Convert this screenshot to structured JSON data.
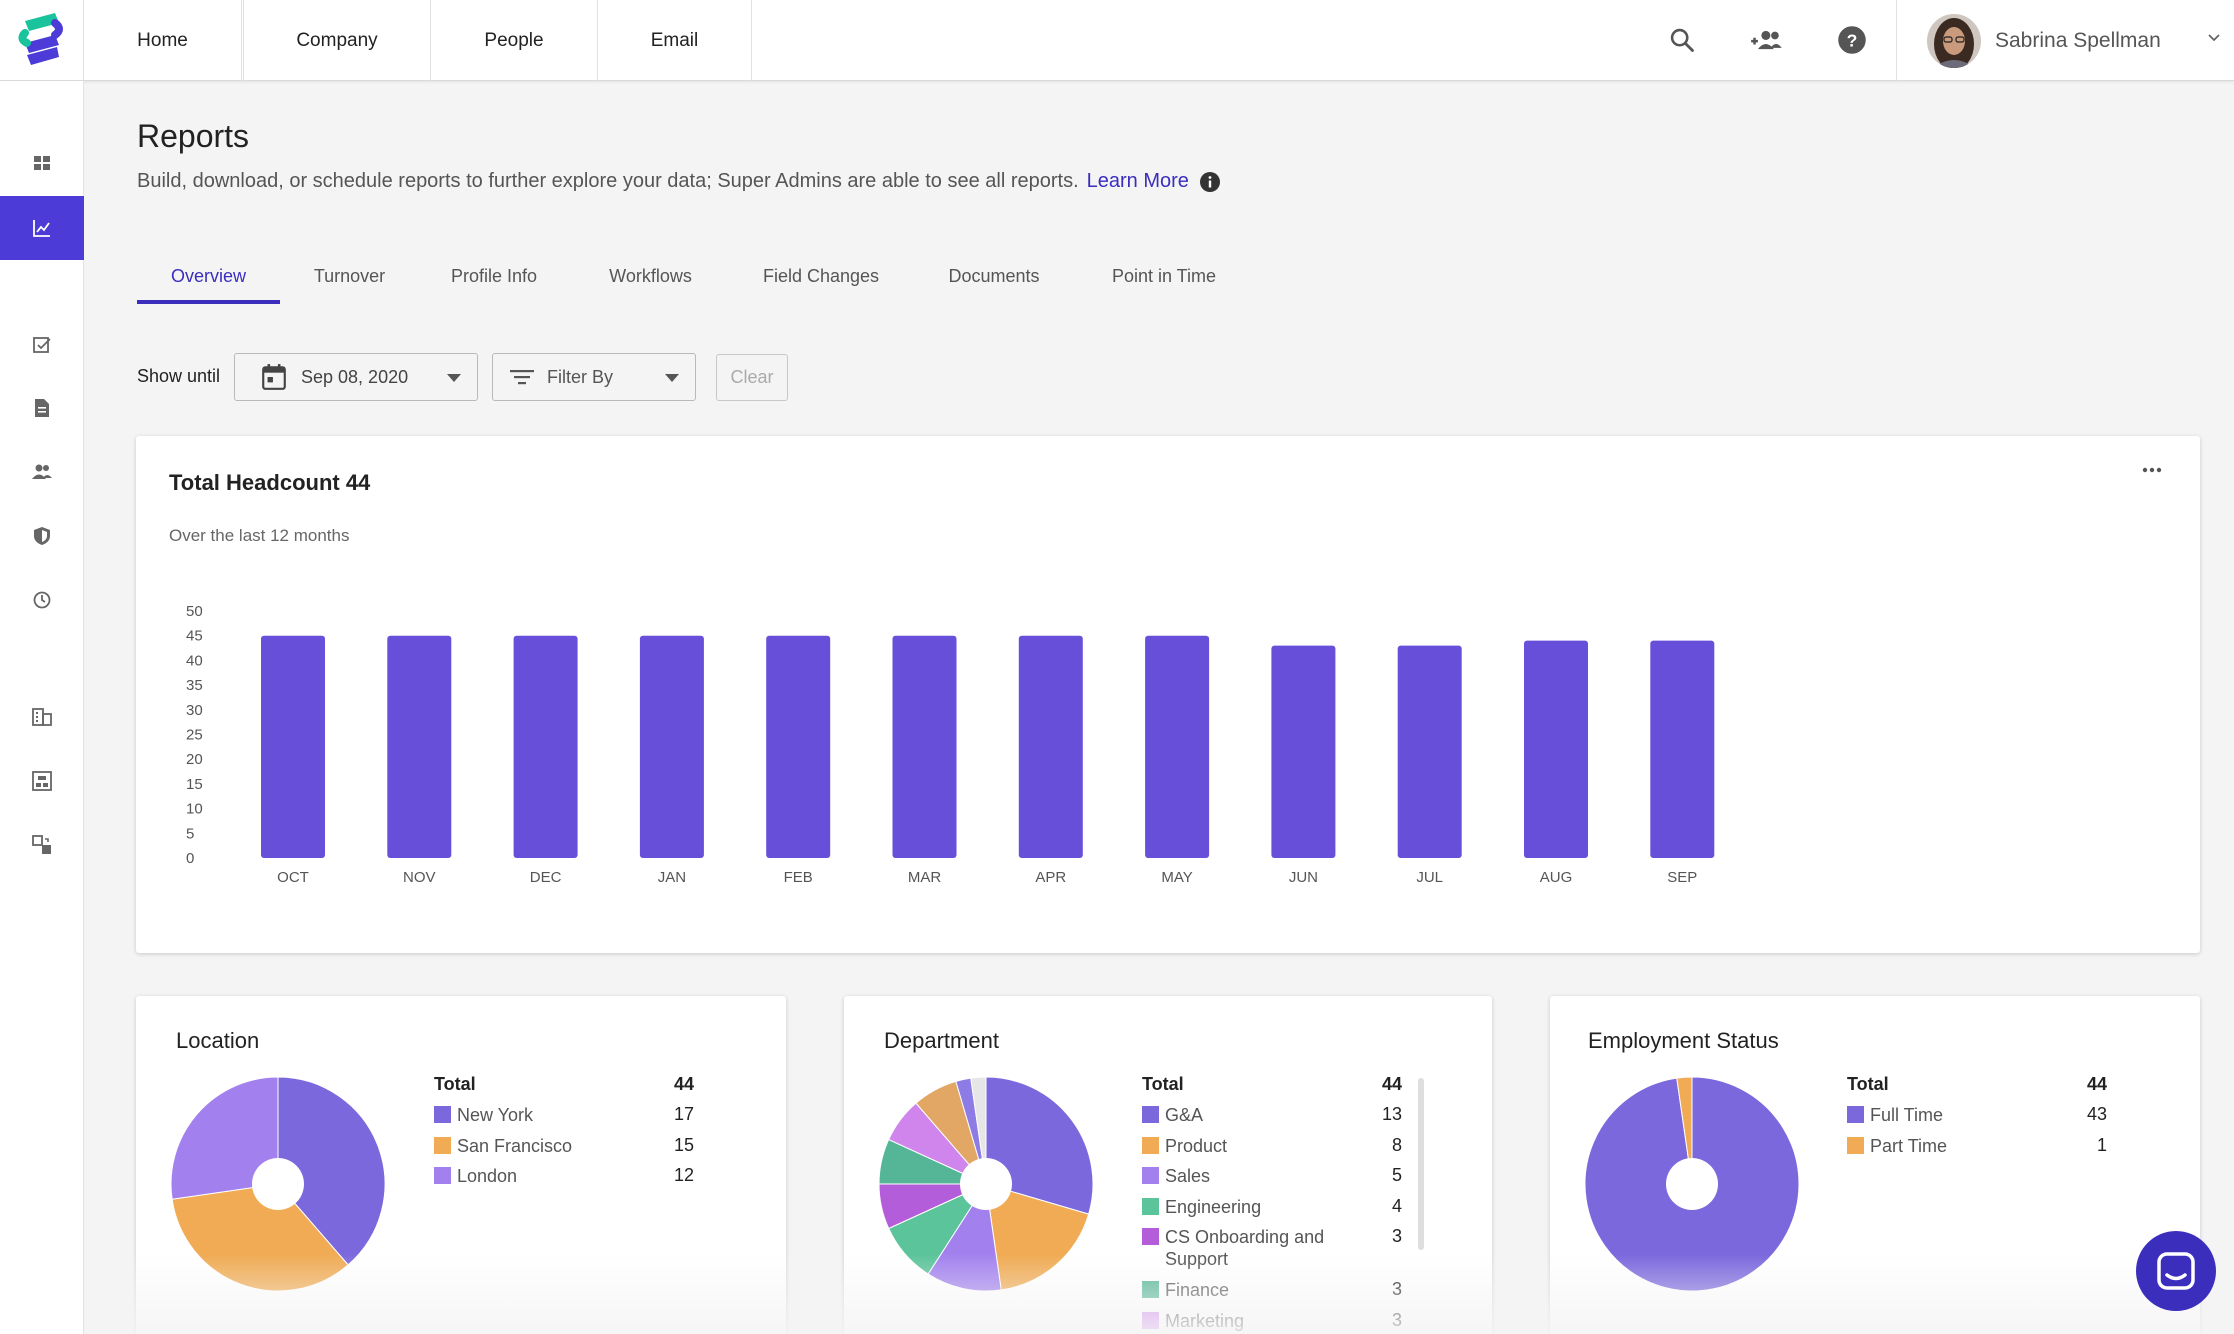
{
  "nav": {
    "tabs": [
      {
        "label": "Home"
      },
      {
        "label": "Company"
      },
      {
        "label": "People"
      },
      {
        "label": "Email"
      }
    ],
    "icons": [
      "search-icon",
      "add-people-icon",
      "help-icon"
    ],
    "user_name": "Sabrina Spellman"
  },
  "sidebar": {
    "items": [
      "dashboard-icon",
      "reports-icon",
      "tasks-icon",
      "documents-icon",
      "people-icon",
      "security-icon",
      "history-icon",
      "company-icon",
      "org-chart-icon",
      "integrations-icon"
    ],
    "active": "reports-icon"
  },
  "header": {
    "title": "Reports",
    "subtitle": "Build, download, or schedule reports to further explore your data; Super Admins are able to see all reports.",
    "learn_more": "Learn More"
  },
  "tabs": [
    {
      "label": "Overview",
      "active": true
    },
    {
      "label": "Turnover"
    },
    {
      "label": "Profile Info"
    },
    {
      "label": "Workflows"
    },
    {
      "label": "Field Changes"
    },
    {
      "label": "Documents"
    },
    {
      "label": "Point in Time"
    }
  ],
  "filters": {
    "show_until_label": "Show until",
    "date_value": "Sep 08, 2020",
    "filter_by_label": "Filter By",
    "clear_label": "Clear"
  },
  "colors": {
    "accent": "#3b2ebd",
    "bar": "#674fda",
    "purple": "#7b68dd",
    "orange": "#f0ab54",
    "lavender": "#a281ee"
  },
  "headcount": {
    "title": "Total Headcount 44",
    "subtitle": "Over the last 12 months"
  },
  "chart_data": [
    {
      "type": "bar",
      "title": "Total Headcount 44",
      "subtitle": "Over the last 12 months",
      "categories": [
        "OCT",
        "NOV",
        "DEC",
        "JAN",
        "FEB",
        "MAR",
        "APR",
        "MAY",
        "JUN",
        "JUL",
        "AUG",
        "SEP"
      ],
      "values": [
        45,
        45,
        45,
        45,
        45,
        45,
        45,
        45,
        43,
        43,
        44,
        44
      ],
      "ylim": [
        0,
        50
      ],
      "yticks": [
        0,
        5,
        10,
        15,
        20,
        25,
        30,
        35,
        40,
        45,
        50
      ],
      "color": "#674fda"
    },
    {
      "type": "pie",
      "title": "Location",
      "total_label": "Total",
      "total": 44,
      "slices": [
        {
          "label": "New York",
          "value": 17,
          "color": "#7b68dd"
        },
        {
          "label": "San Francisco",
          "value": 15,
          "color": "#f0ab54"
        },
        {
          "label": "London",
          "value": 12,
          "color": "#a281ee"
        }
      ]
    },
    {
      "type": "pie",
      "title": "Department",
      "total_label": "Total",
      "total": 44,
      "slices": [
        {
          "label": "G&A",
          "value": 13,
          "color": "#7b68dd"
        },
        {
          "label": "Product",
          "value": 8,
          "color": "#f0ab54"
        },
        {
          "label": "Sales",
          "value": 5,
          "color": "#a281ee"
        },
        {
          "label": "Engineering",
          "value": 4,
          "color": "#5cc49a"
        },
        {
          "label": "CS Onboarding and Support",
          "value": 3,
          "color": "#b45ddb"
        },
        {
          "label": "Finance",
          "value": 3,
          "color": "#55b597"
        },
        {
          "label": "Marketing",
          "value": 3,
          "color": "#cf85ec"
        },
        {
          "label": "",
          "value": 3,
          "color": "#e2a764"
        },
        {
          "label": "",
          "value": 1,
          "color": "#8e7ce6"
        },
        {
          "label": "",
          "value": 1,
          "color": "#e6e6e6"
        }
      ]
    },
    {
      "type": "pie",
      "title": "Employment Status",
      "total_label": "Total",
      "total": 44,
      "slices": [
        {
          "label": "Full Time",
          "value": 43,
          "color": "#7b68dd"
        },
        {
          "label": "Part Time",
          "value": 1,
          "color": "#f0ab54"
        }
      ]
    }
  ]
}
